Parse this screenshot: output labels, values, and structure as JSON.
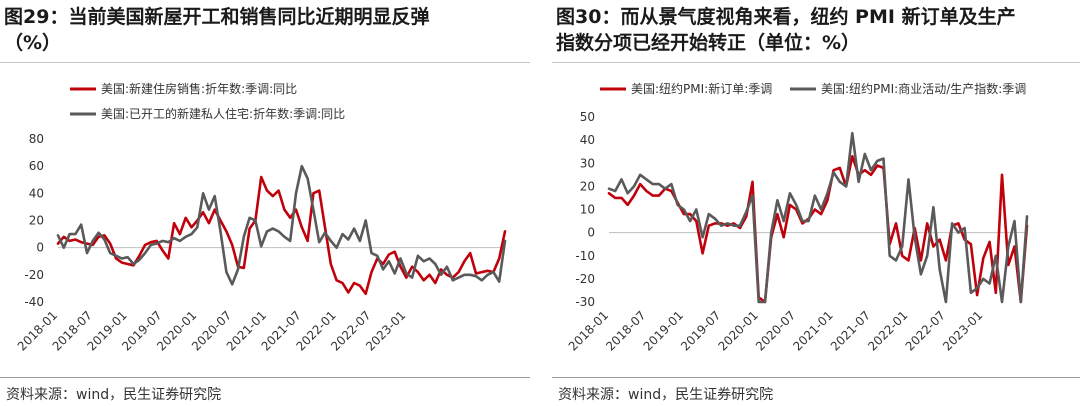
{
  "left": {
    "title_line1": "图29：当前美国新屋开工和销售同比近期明显反弹",
    "title_line2": "（%）",
    "source": "资料来源：wind，民生证券研究院"
  },
  "right": {
    "title_line1": "图30：而从景气度视角来看，纽约 PMI 新订单及生产",
    "title_line2": "指数分项已经开始转正（单位：%）",
    "source": "资料来源：wind，民生证券研究院"
  },
  "chart_data": [
    {
      "type": "line",
      "ylim": [
        -40,
        80
      ],
      "yticks": [
        -40,
        -20,
        0,
        20,
        40,
        60,
        80
      ],
      "x_tick_labels": [
        "2018-01",
        "2018-07",
        "2019-01",
        "2019-07",
        "2020-01",
        "2020-07",
        "2021-01",
        "2021-07",
        "2022-01",
        "2022-07",
        "2023-01"
      ],
      "x_start": "2018-01",
      "legend_position": "top",
      "series": [
        {
          "name": "美国:新建住房销售:折年数:季调:同比",
          "color": "#c0000b",
          "values": [
            3,
            8,
            5,
            6,
            4,
            3,
            2,
            8,
            9,
            3,
            -8,
            -11,
            -12,
            -13,
            -6,
            2,
            4,
            5,
            -2,
            -8,
            18,
            10,
            22,
            15,
            20,
            26,
            18,
            28,
            20,
            12,
            2,
            -14,
            -15,
            14,
            20,
            52,
            42,
            38,
            42,
            28,
            22,
            28,
            15,
            5,
            40,
            42,
            15,
            -12,
            -24,
            -26,
            -33,
            -26,
            -28,
            -34,
            -18,
            -8,
            -12,
            -5,
            -3,
            -14,
            -22,
            -14,
            -18,
            -24,
            -20,
            -26,
            -16,
            -20,
            -22,
            -18,
            -10,
            -4,
            -19,
            -18,
            -17,
            -18,
            -8,
            12
          ],
          "note": "estimated from plot"
        },
        {
          "name": "美国:已开工的新建私人住宅:折年数:季调:同比",
          "color": "#5a5a5a",
          "values": [
            9,
            0,
            10,
            10,
            17,
            -4,
            5,
            11,
            6,
            -4,
            -6,
            -8,
            -7,
            -12,
            -9,
            -4,
            2,
            3,
            5,
            4,
            7,
            5,
            8,
            10,
            15,
            40,
            28,
            38,
            12,
            -18,
            -27,
            -16,
            8,
            22,
            20,
            1,
            12,
            14,
            12,
            8,
            5,
            40,
            60,
            51,
            28,
            4,
            11,
            5,
            0,
            10,
            6,
            14,
            5,
            20,
            -4,
            -6,
            -16,
            -10,
            -19,
            -8,
            -19,
            -22,
            -6,
            -10,
            -8,
            -12,
            -20,
            -14,
            -24,
            -22,
            -20,
            -20,
            -21,
            -24,
            -20,
            -18,
            -25,
            5
          ],
          "note": "estimated from plot"
        }
      ]
    },
    {
      "type": "line",
      "ylim": [
        -30,
        50
      ],
      "yticks": [
        -30,
        -20,
        -10,
        0,
        10,
        20,
        30,
        40,
        50
      ],
      "x_tick_labels": [
        "2018-01",
        "2018-07",
        "2019-01",
        "2019-07",
        "2020-01",
        "2020-07",
        "2021-01",
        "2021-07",
        "2022-01",
        "2022-07",
        "2023-01"
      ],
      "x_start": "2018-01",
      "legend_position": "top",
      "series": [
        {
          "name": "美国:纽约PMI:新订单:季调",
          "color": "#c0000b",
          "values": [
            17,
            15,
            15,
            12,
            16,
            21,
            18,
            16,
            16,
            19,
            18,
            13,
            8,
            8,
            5,
            -9,
            3,
            4,
            4,
            3,
            4,
            2,
            7,
            22,
            -28,
            -30,
            -2,
            8,
            -2,
            12,
            10,
            4,
            6,
            10,
            8,
            14,
            27,
            28,
            20,
            33,
            25,
            27,
            25,
            29,
            28,
            -5,
            4,
            -10,
            -12,
            2,
            -12,
            4,
            -6,
            -3,
            -12,
            3,
            4,
            -3,
            -5,
            -27,
            -11,
            -4,
            -26,
            25,
            -14,
            -6,
            -30,
            3
          ],
          "note": "estimated from plot"
        },
        {
          "name": "美国:纽约PMI:商业活动/生产指数:季调",
          "color": "#5a5a5a",
          "values": [
            19,
            18,
            23,
            17,
            20,
            25,
            23,
            21,
            21,
            19,
            21,
            12,
            10,
            5,
            10,
            -2,
            8,
            6,
            3,
            4,
            3,
            3,
            9,
            16,
            -30,
            -30,
            0,
            14,
            5,
            17,
            12,
            5,
            5,
            16,
            10,
            17,
            26,
            22,
            20,
            43,
            22,
            34,
            27,
            31,
            32,
            -10,
            -12,
            -6,
            23,
            -2,
            -18,
            -10,
            11,
            -16,
            -30,
            4,
            0,
            2,
            -26,
            -24,
            -20,
            -22,
            -10,
            -30,
            -6,
            5,
            -30,
            7
          ],
          "note": "estimated from plot"
        }
      ]
    }
  ]
}
